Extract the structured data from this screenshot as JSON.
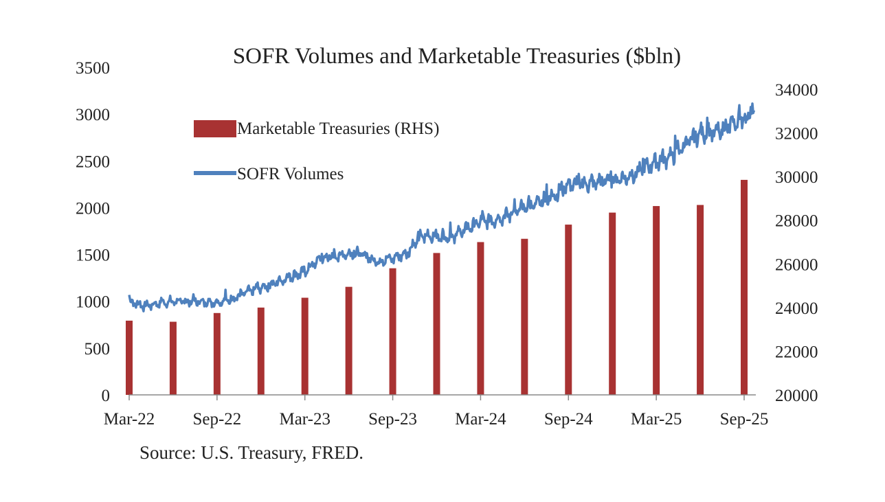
{
  "chart_data": {
    "type": "bar",
    "title": "SOFR Volumes and Marketable Treasuries ($bln)",
    "source": "Source: U.S. Treasury, FRED.",
    "x_ticks": [
      "Mar-22",
      "Sep-22",
      "Mar-23",
      "Sep-23",
      "Mar-24",
      "Sep-24",
      "Mar-25",
      "Sep-25"
    ],
    "y_left": {
      "ticks": [
        "0",
        "500",
        "1000",
        "1500",
        "2000",
        "2500",
        "3000",
        "3500"
      ],
      "range": [
        0,
        3500
      ]
    },
    "y_right": {
      "ticks": [
        "20000",
        "22000",
        "24000",
        "26000",
        "28000",
        "30000",
        "32000",
        "34000"
      ],
      "range": [
        20000,
        34000
      ]
    },
    "legend": {
      "position": "top-left"
    },
    "grid": false,
    "series": [
      {
        "name": "Marketable Treasuries (RHS)",
        "type": "bar",
        "axis": "right",
        "color": "#A83232",
        "x": [
          "Mar-22",
          "Jun-22",
          "Sep-22",
          "Dec-22",
          "Mar-23",
          "Jun-23",
          "Sep-23",
          "Dec-23",
          "Mar-24",
          "Jun-24",
          "Sep-24",
          "Dec-24",
          "Mar-25",
          "Jun-25",
          "Sep-25"
        ],
        "values": [
          23400,
          23350,
          23750,
          24000,
          24450,
          24950,
          25800,
          26500,
          27000,
          27150,
          27800,
          28350,
          28650,
          28700,
          29850
        ]
      },
      {
        "name": "SOFR Volumes",
        "type": "line",
        "axis": "left",
        "color": "#4F81BD",
        "anchors": [
          {
            "x": "Mar-22",
            "y": 1000
          },
          {
            "x": "Apr-22",
            "y": 950
          },
          {
            "x": "Jun-22",
            "y": 1000
          },
          {
            "x": "Sep-22",
            "y": 990
          },
          {
            "x": "Oct-22",
            "y": 1020
          },
          {
            "x": "Nov-22",
            "y": 1100
          },
          {
            "x": "Dec-22",
            "y": 1140
          },
          {
            "x": "Jan-23",
            "y": 1200
          },
          {
            "x": "Mar-23",
            "y": 1320
          },
          {
            "x": "Apr-23",
            "y": 1450
          },
          {
            "x": "Jun-23",
            "y": 1510
          },
          {
            "x": "Jul-23",
            "y": 1500
          },
          {
            "x": "Aug-23",
            "y": 1420
          },
          {
            "x": "Sep-23",
            "y": 1460
          },
          {
            "x": "Oct-23",
            "y": 1520
          },
          {
            "x": "Nov-23",
            "y": 1700
          },
          {
            "x": "Jan-24",
            "y": 1690
          },
          {
            "x": "Mar-24",
            "y": 1850
          },
          {
            "x": "Apr-24",
            "y": 1870
          },
          {
            "x": "Jun-24",
            "y": 2000
          },
          {
            "x": "Aug-24",
            "y": 2130
          },
          {
            "x": "Sep-24",
            "y": 2250
          },
          {
            "x": "Oct-24",
            "y": 2250
          },
          {
            "x": "Dec-24",
            "y": 2300
          },
          {
            "x": "Jan-25",
            "y": 2320
          },
          {
            "x": "Mar-25",
            "y": 2490
          },
          {
            "x": "Apr-25",
            "y": 2550
          },
          {
            "x": "Jun-25",
            "y": 2800
          },
          {
            "x": "Jul-25",
            "y": 2800
          },
          {
            "x": "Sep-25",
            "y": 2950
          }
        ]
      }
    ]
  }
}
